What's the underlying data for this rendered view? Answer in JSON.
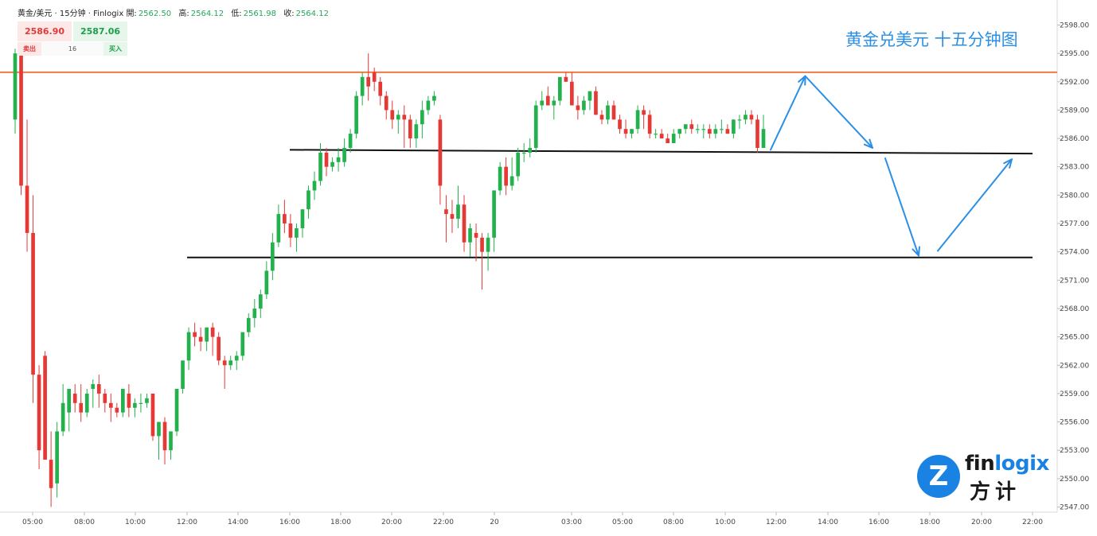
{
  "header": {
    "symbol": "黄金/美元 · 15分钟 · Finlogix",
    "open_label": "開:",
    "open": "2562.50",
    "high_label": "高:",
    "high": "2564.12",
    "low_label": "低:",
    "low": "2561.98",
    "close_label": "收:",
    "close": "2564.12"
  },
  "trade_widget": {
    "sell_price": "2586.90",
    "buy_price": "2587.06",
    "sell_label": "卖出",
    "spread": "16",
    "buy_label": "买入"
  },
  "chart_title": "黄金兑美元 十五分钟图",
  "logo": {
    "word1_a": "fin",
    "word1_b": "logix",
    "word2": "方计",
    "mark": "Z"
  },
  "colors": {
    "up": "#22b14c",
    "down": "#e53935",
    "resistance": "#f07a45",
    "support": "#111111",
    "arrow": "#2b8fe6",
    "title": "#2b8fe6"
  },
  "chart_data": {
    "type": "candlestick",
    "title": "黄金兑美元 十五分钟图",
    "ylim": [
      2546.0,
      2600.0
    ],
    "y_ticks": [
      "2547.00",
      "2550.00",
      "2553.00",
      "2556.00",
      "2559.00",
      "2562.00",
      "2565.00",
      "2568.00",
      "2571.00",
      "2574.00",
      "2577.00",
      "2580.00",
      "2583.00",
      "2586.00",
      "2589.00",
      "2592.00",
      "2595.00",
      "2598.00"
    ],
    "x_ticks": [
      "05:00",
      "08:00",
      "10:00",
      "12:00",
      "14:00",
      "16:00",
      "18:00",
      "20:00",
      "22:00",
      "20",
      "03:00",
      "05:00",
      "08:00",
      "10:00",
      "12:00",
      "14:00",
      "16:00",
      "18:00",
      "20:00",
      "22:00"
    ],
    "candles_ohlc": [
      [
        2588,
        2595.5,
        2586.5,
        2595
      ],
      [
        2595,
        2596,
        2580,
        2581
      ],
      [
        2581,
        2588,
        2574,
        2576
      ],
      [
        2576,
        2580,
        2558,
        2561
      ],
      [
        2561,
        2562,
        2551,
        2553
      ],
      [
        2563,
        2563.5,
        2553,
        2552
      ],
      [
        2552,
        2555,
        2547,
        2549
      ],
      [
        2549.5,
        2556,
        2548,
        2555
      ],
      [
        2555,
        2560,
        2554.5,
        2558
      ],
      [
        2557,
        2559.5,
        2555,
        2559.5
      ],
      [
        2559,
        2560,
        2557,
        2558
      ],
      [
        2558,
        2560,
        2556,
        2557
      ],
      [
        2557,
        2559.5,
        2556.5,
        2559
      ],
      [
        2559.5,
        2560.5,
        2557.5,
        2560
      ],
      [
        2560,
        2561,
        2557.5,
        2559
      ],
      [
        2559,
        2559.5,
        2557,
        2558
      ],
      [
        2558,
        2559,
        2556,
        2557.5
      ],
      [
        2557.5,
        2558,
        2556.5,
        2557
      ],
      [
        2557,
        2559.5,
        2556.5,
        2559.5
      ],
      [
        2559,
        2560,
        2556.5,
        2557.5
      ],
      [
        2557.5,
        2558.5,
        2556.5,
        2558
      ],
      [
        2558,
        2559,
        2557,
        2558
      ],
      [
        2558,
        2559,
        2557.5,
        2558.5
      ],
      [
        2559,
        2559,
        2554,
        2554.5
      ],
      [
        2554.5,
        2556,
        2552,
        2556
      ],
      [
        2556,
        2556.5,
        2551.5,
        2553
      ],
      [
        2553,
        2555,
        2552,
        2555
      ],
      [
        2555,
        2559.5,
        2554.5,
        2559.5
      ],
      [
        2559.5,
        2562.5,
        2559,
        2562.5
      ],
      [
        2562.5,
        2566,
        2561.5,
        2565.5
      ],
      [
        2565.5,
        2566.5,
        2564,
        2565
      ],
      [
        2565,
        2566,
        2563.5,
        2564.5
      ],
      [
        2564.5,
        2566,
        2563.5,
        2566
      ],
      [
        2566,
        2566.5,
        2563,
        2565
      ],
      [
        2565,
        2565.5,
        2562,
        2562.5
      ],
      [
        2562.5,
        2563,
        2559.5,
        2562
      ],
      [
        2562,
        2563,
        2561.5,
        2562.5
      ],
      [
        2562.5,
        2563.5,
        2561.5,
        2563
      ],
      [
        2563,
        2565.5,
        2562.5,
        2565.5
      ],
      [
        2565.5,
        2567.5,
        2565,
        2567
      ],
      [
        2567,
        2569,
        2566,
        2568
      ],
      [
        2568,
        2570,
        2567,
        2569.5
      ],
      [
        2569.5,
        2573,
        2569,
        2572
      ],
      [
        2572,
        2576,
        2571,
        2575
      ],
      [
        2575,
        2579,
        2574.5,
        2578
      ],
      [
        2578,
        2579.5,
        2576,
        2577
      ],
      [
        2577,
        2578,
        2574.5,
        2575.5
      ],
      [
        2575.5,
        2577,
        2574,
        2576.5
      ],
      [
        2576.5,
        2578.5,
        2575.5,
        2578.5
      ],
      [
        2578.5,
        2581,
        2577.5,
        2580.5
      ],
      [
        2580.5,
        2582.5,
        2579.5,
        2581.5
      ],
      [
        2581.5,
        2585.5,
        2581,
        2584.5
      ],
      [
        2584.5,
        2585,
        2582,
        2583
      ],
      [
        2583,
        2584,
        2582.5,
        2583.5
      ],
      [
        2583.5,
        2585,
        2582.5,
        2584
      ],
      [
        2583.5,
        2586,
        2583,
        2585
      ],
      [
        2585,
        2587,
        2584.5,
        2586.5
      ],
      [
        2586.5,
        2591,
        2586,
        2590.5
      ],
      [
        2590.5,
        2593,
        2589.5,
        2592.5
      ],
      [
        2592.5,
        2595,
        2590,
        2591.5
      ],
      [
        2593,
        2593.5,
        2591,
        2592
      ],
      [
        2592,
        2592.5,
        2589.5,
        2590.5
      ],
      [
        2590.5,
        2591,
        2588,
        2589
      ],
      [
        2589,
        2590,
        2587,
        2588
      ],
      [
        2588,
        2589,
        2586.5,
        2588.5
      ],
      [
        2588.5,
        2589.5,
        2585,
        2588
      ],
      [
        2588,
        2588.5,
        2585,
        2586
      ],
      [
        2586,
        2588,
        2585,
        2587.5
      ],
      [
        2587.5,
        2590,
        2586,
        2589
      ],
      [
        2589,
        2590.5,
        2588.5,
        2590
      ],
      [
        2590,
        2591,
        2589.5,
        2590.5
      ],
      [
        2588,
        2588.5,
        2579,
        2581
      ],
      [
        2578.5,
        2580,
        2575,
        2578
      ],
      [
        2578,
        2579.5,
        2576,
        2577.5
      ],
      [
        2577.5,
        2581,
        2576.5,
        2579
      ],
      [
        2579,
        2580,
        2574,
        2575
      ],
      [
        2575,
        2577,
        2573.5,
        2576.5
      ],
      [
        2576,
        2577,
        2573,
        2575.5
      ],
      [
        2575.5,
        2576,
        2570,
        2574
      ],
      [
        2574,
        2576,
        2572,
        2575.5
      ],
      [
        2575.5,
        2580.5,
        2574,
        2580.5
      ],
      [
        2580.5,
        2583.5,
        2580,
        2583
      ],
      [
        2583,
        2584,
        2580,
        2581
      ],
      [
        2581,
        2584,
        2580.5,
        2582
      ],
      [
        2582,
        2585,
        2581.5,
        2584.5
      ],
      [
        2584.5,
        2585.5,
        2583.5,
        2584.5
      ],
      [
        2584.5,
        2586,
        2584,
        2585
      ],
      [
        2585,
        2590,
        2584.5,
        2589.5
      ],
      [
        2589.5,
        2591,
        2589,
        2590
      ],
      [
        2590.5,
        2591.5,
        2589.5,
        2589.5
      ],
      [
        2589.5,
        2590.5,
        2588,
        2590
      ],
      [
        2590,
        2592.5,
        2589.5,
        2592.5
      ],
      [
        2592.5,
        2593,
        2592,
        2592
      ],
      [
        2592,
        2593,
        2589.5,
        2589.5
      ],
      [
        2589.5,
        2590.5,
        2588,
        2589
      ],
      [
        2589,
        2590.5,
        2588.5,
        2590
      ],
      [
        2590,
        2591,
        2589,
        2591
      ],
      [
        2591,
        2591.5,
        2588.5,
        2588.5
      ],
      [
        2588.5,
        2589,
        2587.5,
        2588
      ],
      [
        2588,
        2590,
        2587.5,
        2589.5
      ],
      [
        2589.5,
        2590,
        2588,
        2588
      ],
      [
        2588,
        2588.5,
        2586.5,
        2587
      ],
      [
        2587,
        2588,
        2586,
        2586.5
      ],
      [
        2586.5,
        2587,
        2586,
        2587
      ],
      [
        2587,
        2589.5,
        2586.5,
        2589
      ],
      [
        2589,
        2589.5,
        2587,
        2588.5
      ],
      [
        2588.5,
        2589,
        2586,
        2586.5
      ],
      [
        2586.5,
        2587,
        2586,
        2586.5
      ],
      [
        2586.5,
        2587,
        2586,
        2586
      ],
      [
        2586,
        2586.5,
        2585.5,
        2585.5
      ],
      [
        2585.5,
        2587,
        2585.5,
        2586.5
      ],
      [
        2586.5,
        2587,
        2586,
        2587
      ],
      [
        2587,
        2587.5,
        2586.5,
        2587.5
      ],
      [
        2587.5,
        2588,
        2586.5,
        2587
      ],
      [
        2587,
        2587.5,
        2586.5,
        2587
      ],
      [
        2587,
        2587.5,
        2586,
        2587
      ],
      [
        2587,
        2587.5,
        2586,
        2586.5
      ],
      [
        2586.5,
        2587.5,
        2586,
        2587
      ],
      [
        2587,
        2588,
        2586.5,
        2587
      ],
      [
        2587,
        2587.5,
        2586.5,
        2586.5
      ],
      [
        2586.5,
        2588,
        2586,
        2588
      ],
      [
        2588,
        2588.5,
        2587,
        2588
      ],
      [
        2588,
        2589,
        2587.5,
        2588.5
      ],
      [
        2588.5,
        2589,
        2587.5,
        2588
      ],
      [
        2588,
        2588.5,
        2584.5,
        2585
      ],
      [
        2585,
        2588.5,
        2585,
        2587
      ]
    ],
    "resistance_level": 2593.0,
    "support_lines": [
      {
        "start_time": "16:00",
        "start_price": 2584.8,
        "end_time": "22:00 (next day)",
        "end_price": 2584.4
      },
      {
        "start_time": "12:00",
        "start_price": 2573.4,
        "end_time": "22:00 (next day)",
        "end_price": 2573.4
      }
    ],
    "projection_path": [
      [
        "12:00",
        2584.8
      ],
      [
        "13:00",
        2592.6
      ],
      [
        "16:00",
        2585.0
      ],
      [
        "16:00",
        2583.9
      ],
      [
        "18:00",
        2573.6
      ],
      [
        "18:00",
        2574.1
      ],
      [
        "20:30",
        2583.8
      ]
    ]
  }
}
